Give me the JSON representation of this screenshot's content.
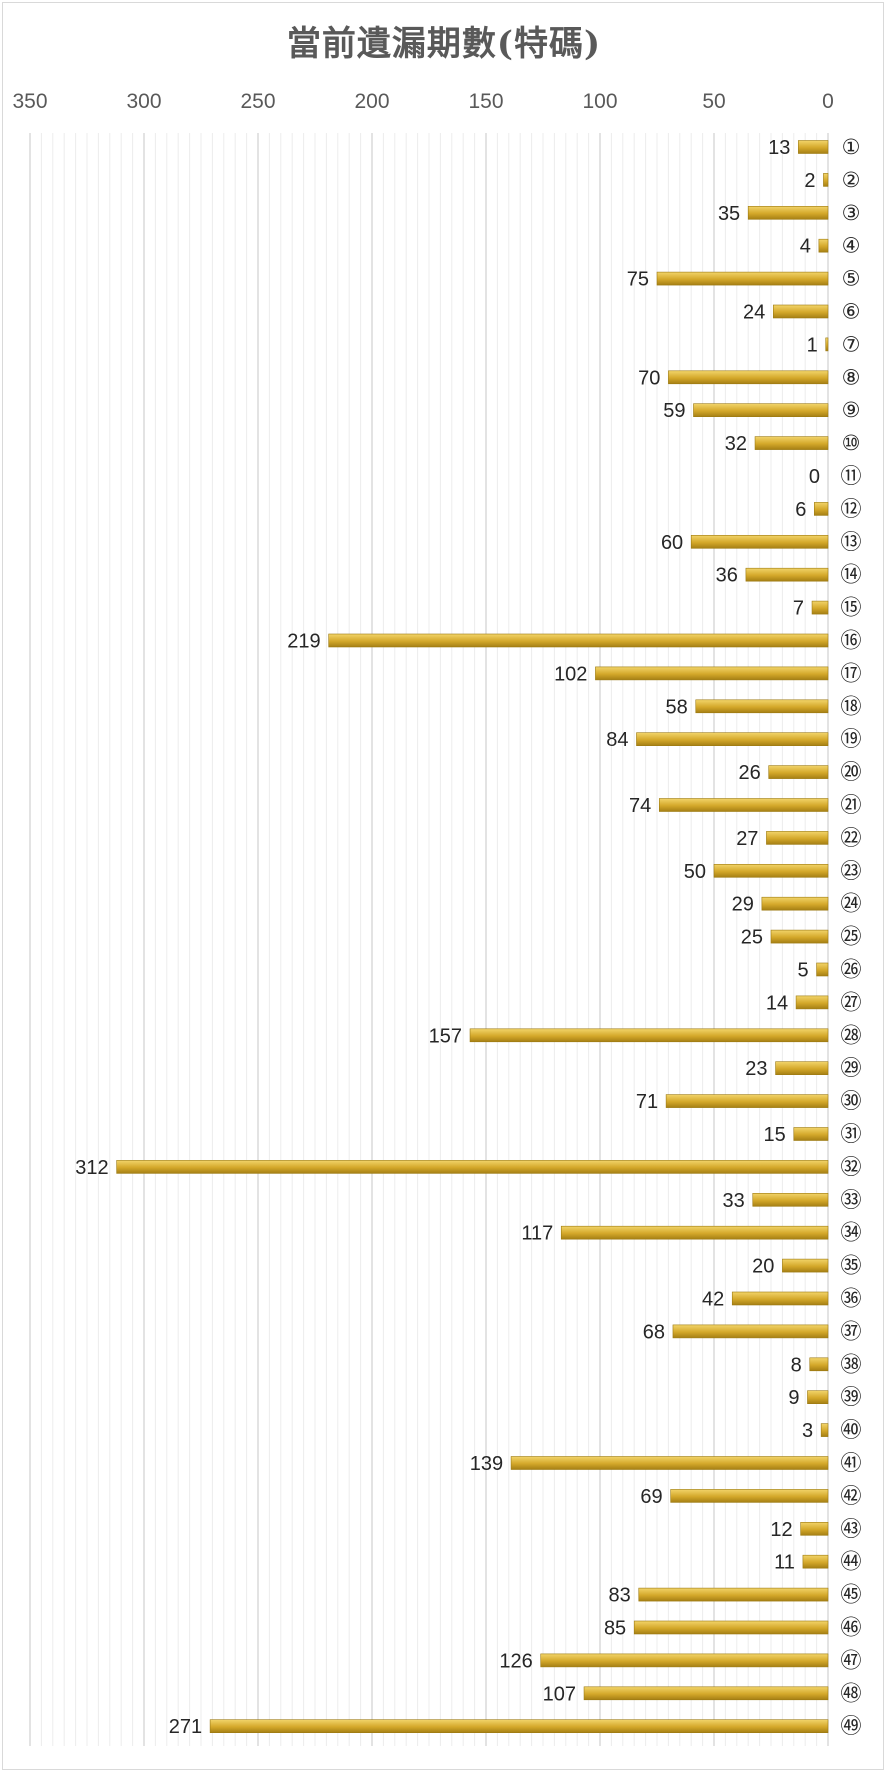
{
  "chart_data": {
    "type": "bar",
    "orientation": "horizontal",
    "x_axis_reversed": true,
    "x_axis_position": "top",
    "category_axis_position": "right",
    "title": "當前遺漏期數(特碼)",
    "xlabel": "",
    "ylabel": "",
    "xlim": [
      0,
      350
    ],
    "x_ticks": [
      350,
      300,
      250,
      200,
      150,
      100,
      50,
      0
    ],
    "grid": true,
    "legend": "none",
    "bar_color": "#d4a82a",
    "categories": [
      "①",
      "②",
      "③",
      "④",
      "⑤",
      "⑥",
      "⑦",
      "⑧",
      "⑨",
      "⑩",
      "⑪",
      "⑫",
      "⑬",
      "⑭",
      "⑮",
      "⑯",
      "⑰",
      "⑱",
      "⑲",
      "⑳",
      "㉑",
      "㉒",
      "㉓",
      "㉔",
      "㉕",
      "㉖",
      "㉗",
      "㉘",
      "㉙",
      "㉚",
      "㉛",
      "㉜",
      "㉝",
      "㉞",
      "㉟",
      "㊱",
      "㊲",
      "㊳",
      "㊴",
      "㊵",
      "㊶",
      "㊷",
      "㊸",
      "㊹",
      "㊺",
      "㊻",
      "㊼",
      "㊽",
      "㊾"
    ],
    "values": [
      13,
      2,
      35,
      4,
      75,
      24,
      1,
      70,
      59,
      32,
      0,
      6,
      60,
      36,
      7,
      219,
      102,
      58,
      84,
      26,
      74,
      27,
      50,
      29,
      25,
      5,
      14,
      157,
      23,
      71,
      15,
      312,
      33,
      117,
      20,
      42,
      68,
      8,
      9,
      3,
      139,
      69,
      12,
      11,
      83,
      85,
      126,
      107,
      271
    ]
  }
}
